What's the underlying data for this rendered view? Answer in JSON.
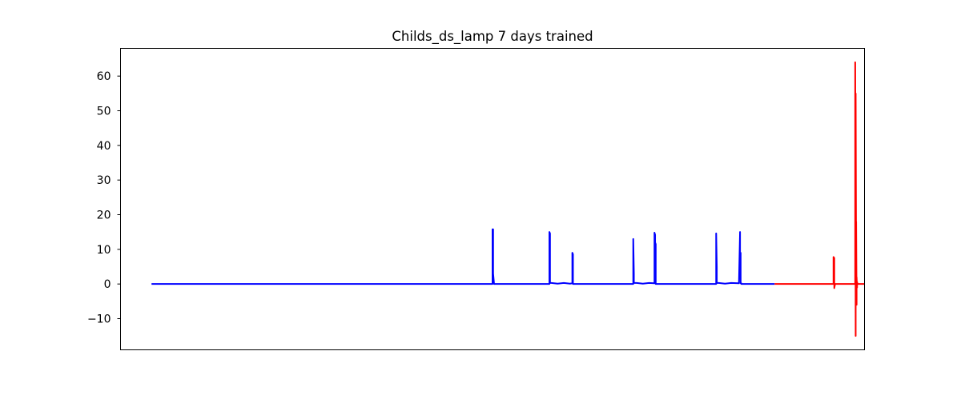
{
  "chart_data": {
    "type": "line",
    "title": "Childs_ds_lamp 7 days trained",
    "xlabel": "",
    "ylabel": "",
    "x_ticks_visible": false,
    "grid": false,
    "legend": "none",
    "xlim": [
      -0.2,
      4.6
    ],
    "ylim": [
      -19,
      68
    ],
    "yticks": [
      -10,
      0,
      10,
      20,
      30,
      40,
      50,
      60
    ],
    "ytick_labels": [
      "−10",
      "0",
      "10",
      "20",
      "30",
      "40",
      "50",
      "60"
    ],
    "series": [
      {
        "color": "#0000ff",
        "x": [
          0,
          2.2,
          2.2,
          2.204,
          2.204,
          2.21,
          2.21,
          2.567,
          2.567,
          2.571,
          2.571,
          2.58,
          2.62,
          2.66,
          2.7,
          2.715,
          2.715,
          2.719,
          2.719,
          3.108,
          3.108,
          3.112,
          3.112,
          3.13,
          3.17,
          3.21,
          3.245,
          3.245,
          3.249,
          3.249,
          3.253,
          3.253,
          3.643,
          3.643,
          3.647,
          3.647,
          3.66,
          3.7,
          3.74,
          3.79,
          3.797,
          3.797,
          3.801,
          3.801,
          3.805,
          3.805,
          4.02
        ],
        "y": [
          0,
          0,
          15.8,
          15.8,
          3,
          0,
          0,
          0,
          15,
          14.6,
          0.3,
          0.3,
          0.1,
          0.3,
          0.1,
          0.2,
          9,
          8.6,
          0,
          0,
          13,
          3,
          0.3,
          0.3,
          0.1,
          0.3,
          0.2,
          14.8,
          14.2,
          12,
          11.5,
          0,
          0,
          14.6,
          5,
          0.3,
          0.3,
          0.1,
          0.3,
          0.2,
          15,
          8,
          9,
          0.2,
          0.2,
          0,
          0
        ]
      },
      {
        "color": "#ff0000",
        "x": [
          4.02,
          4.4,
          4.4,
          4.405,
          4.405,
          4.41,
          4.41,
          4.54,
          4.54,
          4.543,
          4.543,
          4.546,
          4.546,
          4.549,
          4.549,
          4.552,
          4.552,
          4.555,
          4.555,
          4.6
        ],
        "y": [
          0,
          0,
          7.8,
          7.5,
          -1.2,
          0,
          0,
          0,
          64,
          -15,
          55,
          3,
          18,
          -6,
          2,
          -1,
          0.6,
          0,
          0,
          0
        ]
      }
    ]
  }
}
